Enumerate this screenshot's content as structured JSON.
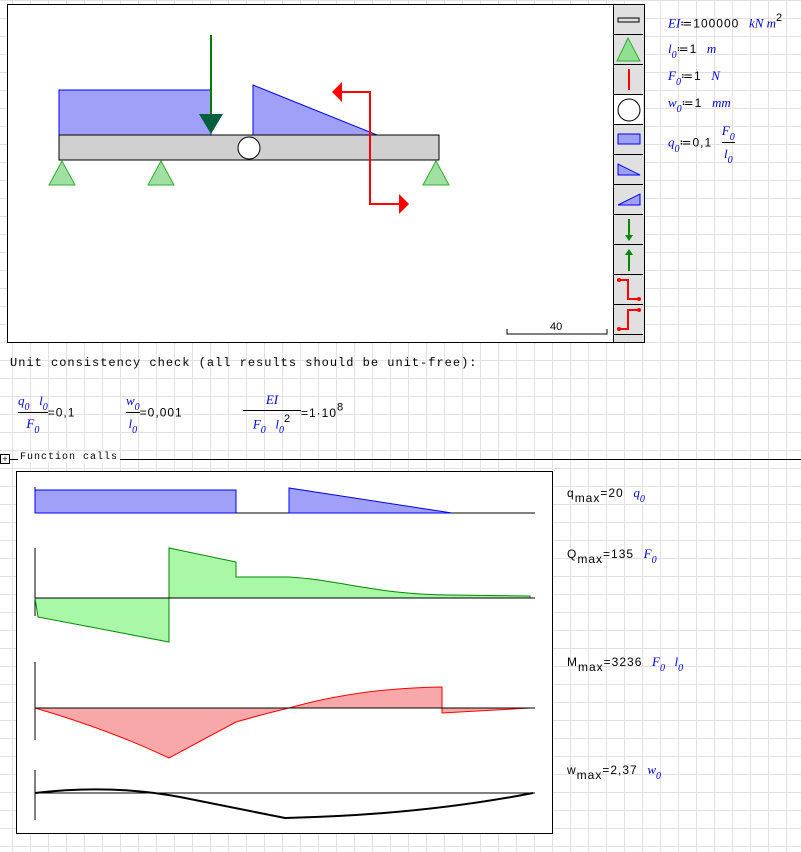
{
  "toolbar": {
    "items": [
      "beam-icon",
      "support-icon",
      "hinge-line-icon",
      "hinge-circle-icon",
      "uniform-load-icon",
      "decreasing-load-icon",
      "increasing-load-icon",
      "force-down-icon",
      "force-up-icon",
      "moment-cw-icon",
      "moment-ccw-icon"
    ]
  },
  "scale_label": "40",
  "definitions": {
    "EI": {
      "name": "EI",
      "op": "≔",
      "value": "100000",
      "unit": "kN m",
      "exp": "2"
    },
    "l0": {
      "name": "l",
      "sub": "0",
      "op": "≔",
      "value": "1",
      "unit": "m"
    },
    "F0": {
      "name": "F",
      "sub": "0",
      "op": "≔",
      "value": "1",
      "unit": "N"
    },
    "w0": {
      "name": "w",
      "sub": "0",
      "op": "≔",
      "value": "1",
      "unit": "mm"
    },
    "q0": {
      "name": "q",
      "sub": "0",
      "op": "≔",
      "value": "0,1",
      "num": "F",
      "den": "l"
    }
  },
  "unit_check": {
    "title": "Unit consistency check (all results should be unit-free):",
    "r1": "=0,1",
    "r2": "=0,001",
    "r3": "=1·10",
    "r3exp": "8",
    "exp2": "2"
  },
  "section": {
    "label": "Function calls"
  },
  "results": {
    "q": {
      "name": "q",
      "sub": "max",
      "value": "=20",
      "unit": "q",
      "unit_sub": "0"
    },
    "Q": {
      "name": "Q",
      "sub": "max",
      "value": "=135",
      "unit": "F",
      "unit_sub": "0"
    },
    "M": {
      "name": "M",
      "sub": "max",
      "value": "=3236",
      "unit": "F",
      "unit_sub": "0",
      "unit2": "l"
    },
    "w": {
      "name": "w",
      "sub": "max",
      "value": "=2,37",
      "unit": "w",
      "unit_sub": "0"
    }
  },
  "colors": {
    "load": "#a0a0f8",
    "shear": "#a8f8a8",
    "moment": "#f8a8a8",
    "support": "#a0e0a0",
    "beam": "#d0d0d0"
  }
}
